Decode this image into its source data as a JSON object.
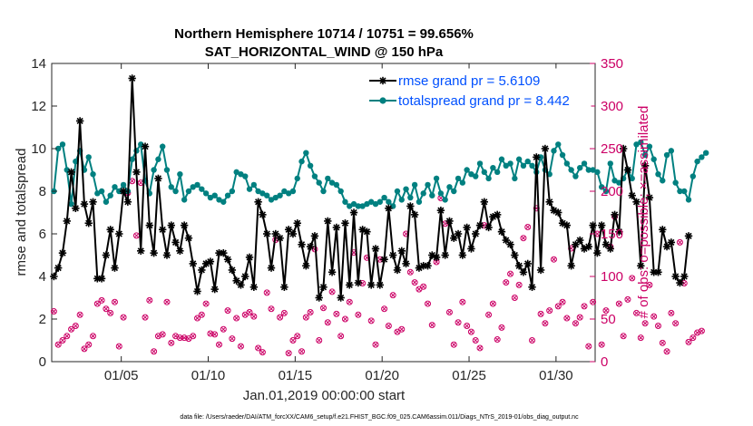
{
  "chart_data": {
    "type": "line",
    "title": "Northern Hemisphere 10714 / 10751 = 99.656%",
    "subtitle": "SAT_HORIZONTAL_WIND @ 150 hPa",
    "xlabel": "Jan.01,2019 00:00:00 start",
    "ylabel": "rmse and totalspread",
    "ylabel_right": "# of obs: o=possible; ×=assimilated",
    "footer": "data file: /Users/raeder/DAI/ATM_forcXX/CAM6_setup/f.e21.FHIST_BGC.f09_025.CAM6assim.011/Diags_NTrS_2019-01/obs_diag_output.nc",
    "xlim": [
      1,
      32.25
    ],
    "ylim": [
      0,
      14
    ],
    "ylim_right": [
      0,
      350
    ],
    "xticks": [
      5,
      10,
      15,
      20,
      25,
      30
    ],
    "xtick_labels": [
      "01/05",
      "01/10",
      "01/15",
      "01/20",
      "01/25",
      "01/30"
    ],
    "yticks": [
      0,
      2,
      4,
      6,
      8,
      10,
      12,
      14
    ],
    "yticks_right": [
      0,
      50,
      100,
      150,
      200,
      250,
      300,
      350
    ],
    "grid": false,
    "legend_position": "top-right",
    "colors": {
      "rmse": "#000000",
      "spread": "#008080",
      "obs": "#cc0066",
      "legend_text": "#0050ff"
    },
    "series": [
      {
        "name": "rmse grand pr = 5.6109",
        "marker": "star",
        "x_start": 1.125,
        "x_step": 0.25,
        "values": [
          4.0,
          4.4,
          5.1,
          6.6,
          8.9,
          7.2,
          11.3,
          7.4,
          6.5,
          7.5,
          3.9,
          3.9,
          5.0,
          6.2,
          4.4,
          6.0,
          8.0,
          7.5,
          13.3,
          8.9,
          5.2,
          10.1,
          6.4,
          5.1,
          8.6,
          6.2,
          5.0,
          6.4,
          5.6,
          5.2,
          6.4,
          5.8,
          4.6,
          3.3,
          4.3,
          4.6,
          4.7,
          3.4,
          5.1,
          5.1,
          4.8,
          4.3,
          3.8,
          3.6,
          4.0,
          4.9,
          3.5,
          7.5,
          6.9,
          6.0,
          4.4,
          6.0,
          5.8,
          3.5,
          6.2,
          6.0,
          6.5,
          5.5,
          4.5,
          5.4,
          5.9,
          3.0,
          3.5,
          6.6,
          4.2,
          6.3,
          3.0,
          6.5,
          3.6,
          7.0,
          3.7,
          6.2,
          6.1,
          3.6,
          5.3,
          3.6,
          4.8,
          7.2,
          5.0,
          4.3,
          5.2,
          4.6,
          7.3,
          6.9,
          4.4,
          4.5,
          4.5,
          5.0,
          4.9,
          7.1,
          5.0,
          6.6,
          5.8,
          6.0,
          5.0,
          6.3,
          5.3,
          6.0,
          6.4,
          7.5,
          6.3,
          6.8,
          6.9,
          6.1,
          5.7,
          5.5,
          5.0,
          4.5,
          4.2,
          4.6,
          3.5,
          9.6,
          4.3,
          10.0,
          7.5,
          7.1,
          7.0,
          6.5,
          6.4,
          4.5,
          5.5,
          5.7,
          5.3,
          5.4,
          6.4,
          5.1,
          6.4,
          5.5,
          5.3,
          6.9,
          6.1,
          10.0,
          9.0,
          7.8,
          7.5,
          4.5,
          9.2,
          7.7,
          4.2,
          4.2,
          6.2,
          5.4,
          5.6,
          4.0,
          3.7,
          4.0,
          5.9
        ]
      },
      {
        "name": "totalspread grand pr = 8.442",
        "marker": "circle",
        "x_start": 1.125,
        "x_step": 0.25,
        "values": [
          8.0,
          10.0,
          10.2,
          9.0,
          7.4,
          9.4,
          9.9,
          9.0,
          9.6,
          8.8,
          7.9,
          8.0,
          7.5,
          7.8,
          8.2,
          8.0,
          8.3,
          8.0,
          9.5,
          9.9,
          10.2,
          8.5,
          7.9,
          9.0,
          9.5,
          10.1,
          9.0,
          8.2,
          8.0,
          8.8,
          7.6,
          8.0,
          8.2,
          8.3,
          8.1,
          7.9,
          7.7,
          7.8,
          7.6,
          7.5,
          7.8,
          8.0,
          8.9,
          8.8,
          8.7,
          8.1,
          8.3,
          8.0,
          7.9,
          7.8,
          7.6,
          7.7,
          7.8,
          8.0,
          7.9,
          8.0,
          8.6,
          9.4,
          9.8,
          9.2,
          8.7,
          8.4,
          8.0,
          8.6,
          8.4,
          8.3,
          8.0,
          7.5,
          7.3,
          7.4,
          7.3,
          7.3,
          7.4,
          7.5,
          7.4,
          7.5,
          7.7,
          7.5,
          7.3,
          8.0,
          7.6,
          8.1,
          7.7,
          8.3,
          7.5,
          7.9,
          8.3,
          7.8,
          8.6,
          7.9,
          7.6,
          8.2,
          8.0,
          8.6,
          8.4,
          9.0,
          8.8,
          8.7,
          9.3,
          8.9,
          8.6,
          9.1,
          8.9,
          9.5,
          9.2,
          9.3,
          8.6,
          9.5,
          9.2,
          9.4,
          9.2,
          8.9,
          9.6,
          9.0,
          8.8,
          9.9,
          10.2,
          9.7,
          9.3,
          9.0,
          8.7,
          9.1,
          9.3,
          9.0,
          9.0,
          8.9,
          8.2,
          8.0,
          9.3,
          8.5,
          8.4,
          8.6,
          9.0,
          8.6,
          10.2,
          10.3,
          9.7,
          10.1,
          9.5,
          8.8,
          8.5,
          9.7,
          9.9,
          8.4,
          8.0,
          8.0,
          7.6,
          8.7,
          9.4,
          9.6,
          9.8
        ]
      },
      {
        "name": "obs possible",
        "marker": "circle-open",
        "axis": "right",
        "x_start": 1.125,
        "x_step": 0.25,
        "values": [
          59,
          20,
          25,
          30,
          38,
          42,
          55,
          15,
          20,
          30,
          68,
          72,
          62,
          57,
          70,
          18,
          52,
          198,
          212,
          148,
          210,
          52,
          72,
          12,
          30,
          32,
          70,
          22,
          30,
          28,
          28,
          27,
          30,
          51,
          55,
          68,
          33,
          32,
          20,
          38,
          60,
          27,
          51,
          18,
          55,
          58,
          53,
          16,
          11,
          81,
          62,
          143,
          52,
          57,
          10,
          25,
          30,
          12,
          52,
          58,
          132,
          25,
          63,
          46,
          82,
          56,
          30,
          50,
          70,
          128,
          55,
          92,
          122,
          48,
          20,
          120,
          62,
          42,
          78,
          35,
          38,
          150,
          105,
          93,
          85,
          88,
          68,
          43,
          117,
          192,
          162,
          58,
          20,
          46,
          70,
          42,
          35,
          25,
          16,
          160,
          55,
          68,
          26,
          40,
          93,
          103,
          75,
          90,
          145,
          158,
          25,
          180,
          56,
          45,
          60,
          120,
          65,
          70,
          51,
          133,
          45,
          52,
          65,
          18,
          70,
          150,
          20,
          60,
          135,
          170,
          68,
          30,
          73,
          98,
          57,
          28,
          45,
          90,
          53,
          42,
          22,
          12,
          57,
          45,
          140,
          92,
          23,
          28,
          34,
          36
        ]
      }
    ]
  }
}
